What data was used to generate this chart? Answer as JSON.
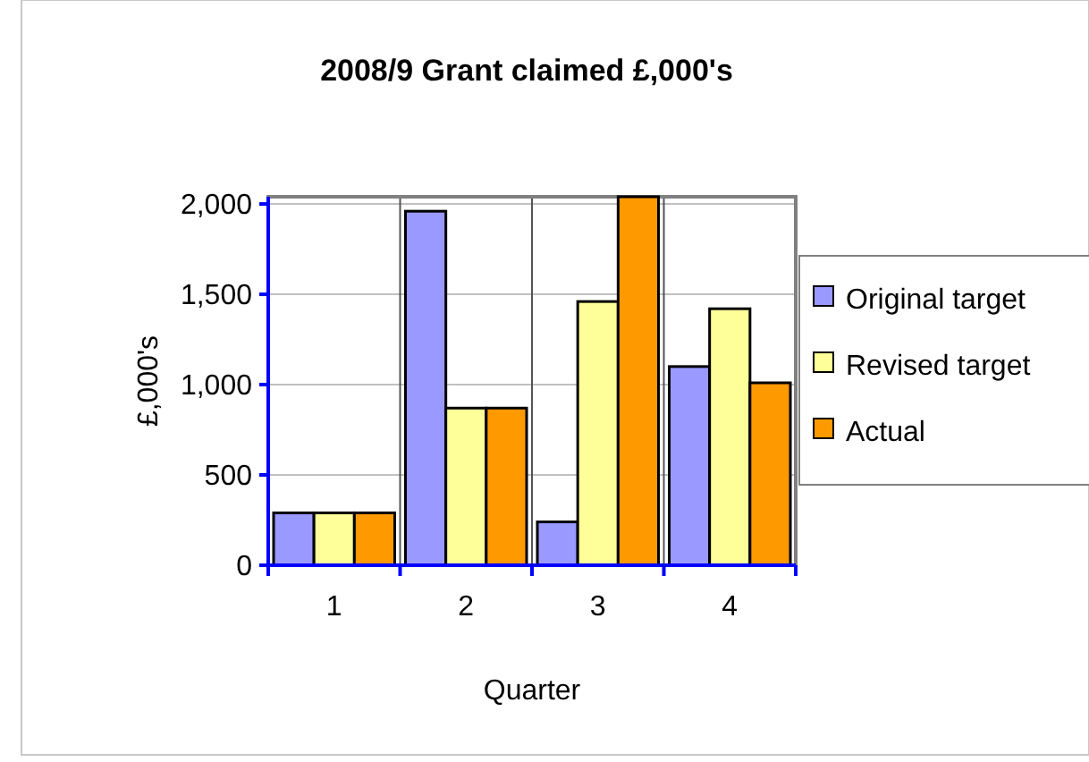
{
  "chart_data": {
    "type": "bar",
    "title": "2008/9 Grant claimed £,000's",
    "xlabel": "Quarter",
    "ylabel": "£,000's",
    "categories": [
      "1",
      "2",
      "3",
      "4"
    ],
    "series": [
      {
        "name": "Original target",
        "color": "#9999ff",
        "values": [
          290,
          1960,
          240,
          1100
        ]
      },
      {
        "name": "Revised target",
        "color": "#ffff99",
        "values": [
          290,
          870,
          1460,
          1420
        ]
      },
      {
        "name": "Actual",
        "color": "#ff9900",
        "values": [
          290,
          870,
          2040,
          1010
        ]
      }
    ],
    "ylim": [
      0,
      2040
    ],
    "yticks": [
      {
        "value": 0,
        "label": "0"
      },
      {
        "value": 500,
        "label": "500"
      },
      {
        "value": 1000,
        "label": "1,000"
      },
      {
        "value": 1500,
        "label": "1,500"
      },
      {
        "value": 2000,
        "label": "2,000"
      }
    ],
    "grid": true,
    "legend": "right"
  }
}
